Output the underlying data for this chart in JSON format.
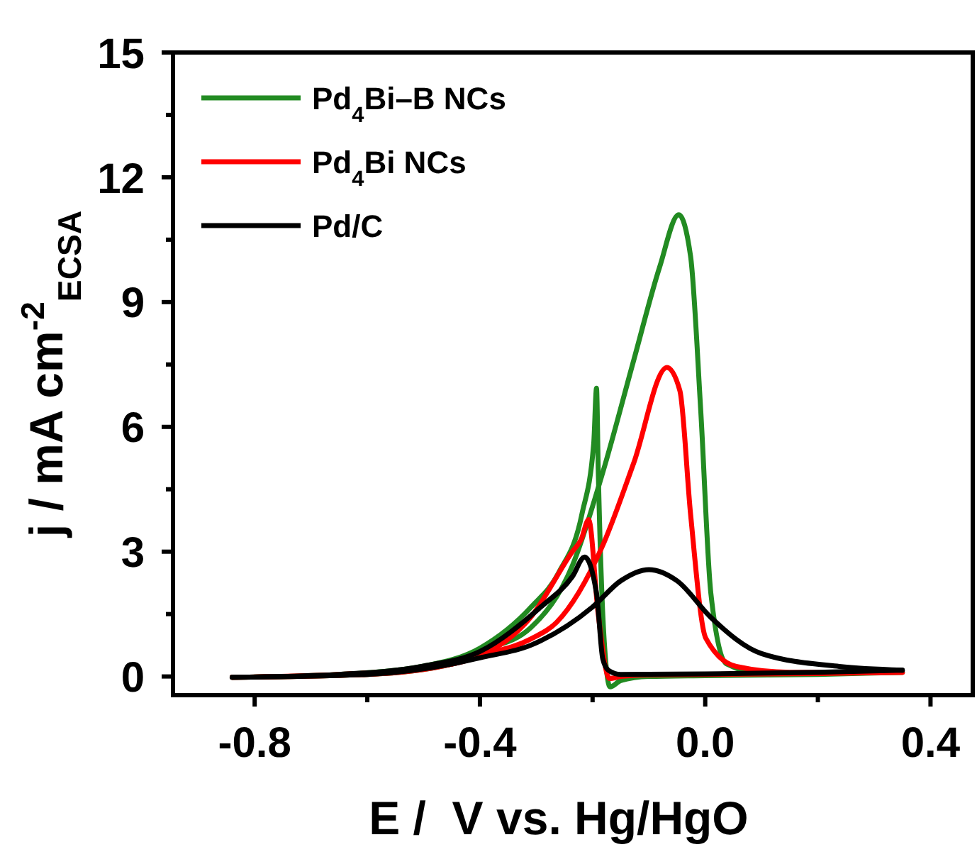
{
  "chart_data": {
    "type": "line",
    "xlabel": "E /  V vs. Hg/HgO",
    "ylabel": "j / mA cm$^{-2}$$_{ECSA}$",
    "xlim": [
      -0.945,
      0.475
    ],
    "xticks": [
      -0.8,
      {
        "value": -0.6,
        "label": null
      },
      -0.4,
      {
        "value": -0.2,
        "label": null
      },
      {
        "value": 0.0,
        "label": "0.0"
      },
      {
        "value": 0.2,
        "label": null
      },
      0.4
    ],
    "ylim": [
      -0.45,
      15
    ],
    "yticks": [
      0,
      {
        "value": 1.5,
        "label": null
      },
      3,
      {
        "value": 4.5,
        "label": null
      },
      6,
      {
        "value": 7.5,
        "label": null
      },
      9,
      {
        "value": 10.5,
        "label": null
      },
      12,
      {
        "value": 13.5,
        "label": null
      },
      15
    ],
    "legend": "top left",
    "grid": false,
    "marker": "none",
    "line_style": "solid",
    "series": [
      {
        "name": "Pd$_{4}$Bi–B NCs",
        "color": "#228b22",
        "x": [
          -0.84,
          -0.6,
          -0.45,
          -0.4,
          -0.31,
          -0.236,
          -0.182,
          -0.127,
          -0.081,
          -0.047,
          -0.026,
          -0.008,
          0.01,
          0.038,
          0.1,
          0.35
        ],
        "values": [
          -0.02,
          0.05,
          0.3,
          0.6,
          1.17,
          2.66,
          4.9,
          7.6,
          9.84,
          11.1,
          10.1,
          6.4,
          2.0,
          0.3,
          0.08,
          0.1
        ]
      },
      {
        "color": "#228b22",
        "x": [
          -0.84,
          -0.65,
          -0.5,
          -0.4,
          -0.309,
          -0.26,
          -0.219,
          -0.198,
          -0.193,
          -0.19,
          -0.18,
          -0.169,
          -0.15,
          -0.1,
          0.0,
          0.2,
          0.35
        ],
        "values": [
          -0.02,
          0.05,
          0.25,
          0.68,
          1.67,
          2.5,
          3.9,
          5.6,
          6.93,
          5.0,
          1.0,
          -0.25,
          -0.1,
          0.0,
          0.02,
          0.05,
          0.1
        ]
      },
      {
        "name": "Pd$_{4}$Bi NCs",
        "color": "#ff0000",
        "x": [
          -0.84,
          -0.6,
          -0.45,
          -0.4,
          -0.31,
          -0.264,
          -0.182,
          -0.127,
          -0.068,
          -0.045,
          -0.026,
          0.001,
          0.055,
          0.15,
          0.35
        ],
        "values": [
          -0.02,
          0.05,
          0.3,
          0.5,
          0.9,
          1.3,
          3.15,
          5.13,
          7.43,
          6.87,
          3.9,
          0.92,
          0.24,
          0.1,
          0.1
        ]
      },
      {
        "color": "#ff0000",
        "x": [
          -0.84,
          -0.65,
          -0.5,
          -0.4,
          -0.31,
          -0.236,
          -0.22,
          -0.207,
          -0.19,
          -0.17,
          -0.15,
          -0.1,
          0.0,
          0.2,
          0.35
        ],
        "values": [
          -0.02,
          0.05,
          0.2,
          0.5,
          1.42,
          3.0,
          3.3,
          3.77,
          1.5,
          -0.05,
          0.0,
          0.04,
          0.05,
          0.07,
          0.1
        ]
      },
      {
        "name": "Pd/C",
        "color": "#000000",
        "x": [
          -0.84,
          -0.6,
          -0.45,
          -0.4,
          -0.31,
          -0.2,
          -0.15,
          -0.1,
          -0.05,
          0.01,
          0.1,
          0.238,
          0.35
        ],
        "values": [
          -0.02,
          0.05,
          0.3,
          0.45,
          0.75,
          1.67,
          2.3,
          2.57,
          2.3,
          1.42,
          0.55,
          0.24,
          0.15
        ]
      },
      {
        "color": "#000000",
        "x": [
          -0.84,
          -0.65,
          -0.5,
          -0.4,
          -0.292,
          -0.236,
          -0.214,
          -0.193,
          -0.182,
          -0.172,
          -0.15,
          0.0,
          0.2,
          0.35
        ],
        "values": [
          -0.02,
          0.05,
          0.25,
          0.6,
          1.67,
          2.4,
          2.87,
          2.0,
          0.43,
          0.15,
          0.05,
          0.06,
          0.1,
          0.15
        ]
      }
    ]
  }
}
